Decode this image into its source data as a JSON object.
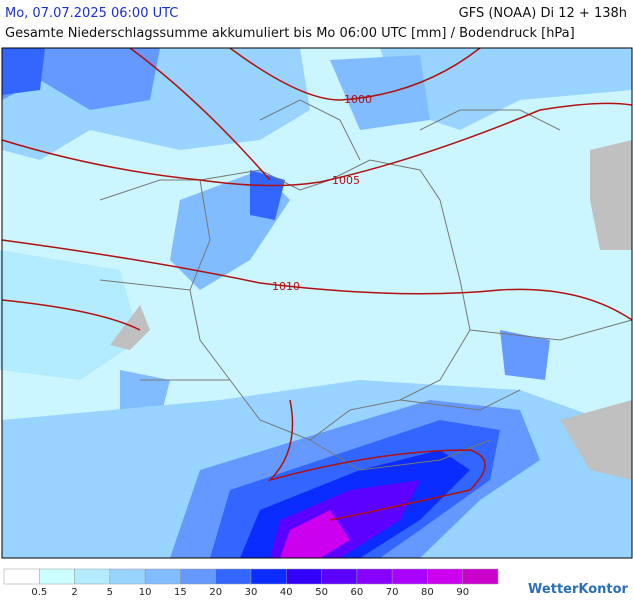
{
  "header": {
    "date": "Mo, 07.07.2025 06:00 UTC",
    "model": "GFS (NOAA) Di 12 + 138h",
    "subtitle": "Gesamte Niederschlagssumme akkumuliert bis Mo 06:00 UTC [mm] / Bodendruck [hPa]"
  },
  "isobars": [
    {
      "label": "1000"
    },
    {
      "label": "1005"
    },
    {
      "label": "1010"
    }
  ],
  "legend": {
    "colors": [
      "#ffffff",
      "#ccffff",
      "#b3ecff",
      "#99d3ff",
      "#80bcff",
      "#6699ff",
      "#3366ff",
      "#0a2cff",
      "#3300ff",
      "#5c00ff",
      "#8800ff",
      "#aa00ff",
      "#cc00ee",
      "#cc00cc"
    ],
    "labels": [
      "0.5",
      "2",
      "5",
      "10",
      "15",
      "20",
      "30",
      "40",
      "50",
      "60",
      "70",
      "80",
      "90"
    ]
  },
  "logo": "WetterKontor"
}
